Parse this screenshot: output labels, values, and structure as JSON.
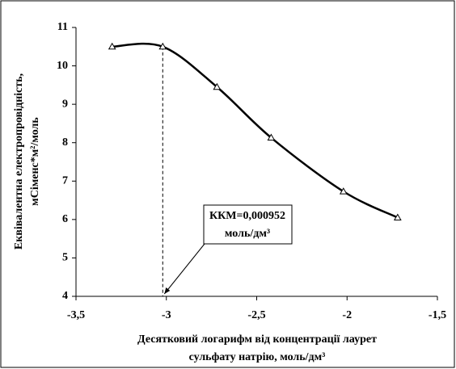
{
  "chart_data": {
    "type": "line",
    "xlabel": [
      "Десятковий логарифм від концентрації лаурет",
      "сульфату натрію, моль/дм³"
    ],
    "ylabel": [
      "Еквівалентна електропровідність,",
      "мСіменс*м²/моль"
    ],
    "x": [
      -3.3,
      -3.02,
      -2.72,
      -2.42,
      -2.02,
      -1.72
    ],
    "series": [
      {
        "color": "#000000",
        "values": [
          10.5,
          10.5,
          9.45,
          8.13,
          6.73,
          6.05
        ]
      }
    ],
    "xlim": [
      -3.5,
      -1.5
    ],
    "xticks": [
      {
        "value": -3.5,
        "label": "-3,5"
      },
      {
        "value": -3,
        "label": "-3"
      },
      {
        "value": -2.5,
        "label": "-2,5"
      },
      {
        "value": -2,
        "label": "-2"
      },
      {
        "value": -1.5,
        "label": "-1,5"
      }
    ],
    "ylim": [
      4,
      11
    ],
    "yticks": [
      4,
      5,
      6,
      7,
      8,
      9,
      10,
      11
    ],
    "annotation": [
      "ККМ=0,000952",
      "моль/дм³"
    ]
  }
}
